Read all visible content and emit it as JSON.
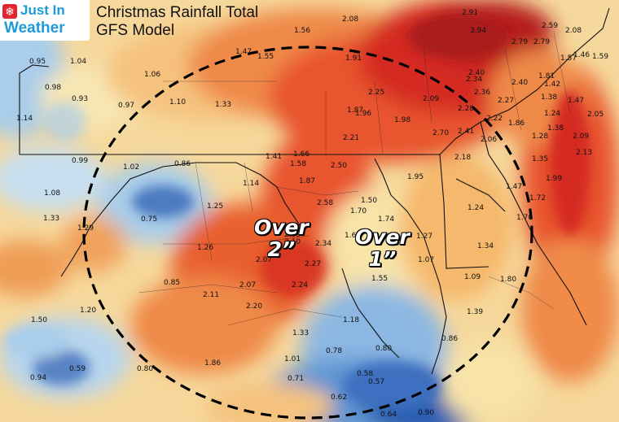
{
  "brand": {
    "line1": "Just In",
    "line2": "Weather",
    "icon": "snowflake-icon"
  },
  "title": {
    "line1": "Christmas Rainfall Total",
    "line2": "GFS Model"
  },
  "callouts": [
    {
      "big": "Over",
      "small": "2”"
    },
    {
      "big": "Over",
      "small": "1”"
    }
  ],
  "colors": {
    "light_blue": "#a9cdea",
    "mid_blue": "#5f95d2",
    "dark_blue": "#2c5fb3",
    "pale_yellow": "#f8e3a8",
    "light_orange": "#f5b86c",
    "orange": "#ef8a4a",
    "red_orange": "#e8542d",
    "red": "#d42a22",
    "dark_red": "#a81b1d",
    "circle": "#000000"
  },
  "rainfall_values": [
    {
      "v": "2.91"
    },
    {
      "v": "2.59"
    },
    {
      "v": "2.08"
    },
    {
      "v": "3.94"
    },
    {
      "v": "2.79"
    },
    {
      "v": "2.79"
    },
    {
      "v": "1.57"
    },
    {
      "v": "1.46"
    },
    {
      "v": "1.59"
    },
    {
      "v": "2.08"
    },
    {
      "v": "1.56"
    },
    {
      "v": "1.47"
    },
    {
      "v": "1.55"
    },
    {
      "v": "1.91"
    },
    {
      "v": "1.04"
    },
    {
      "v": "0.95"
    },
    {
      "v": "1.06"
    },
    {
      "v": "0.98"
    },
    {
      "v": "0.93"
    },
    {
      "v": "0.97"
    },
    {
      "v": "1.10"
    },
    {
      "v": "1.33"
    },
    {
      "v": "2.40"
    },
    {
      "v": "2.34"
    },
    {
      "v": "2.40"
    },
    {
      "v": "1.81"
    },
    {
      "v": "1.42"
    },
    {
      "v": "1.38"
    },
    {
      "v": "2.25"
    },
    {
      "v": "2.36"
    },
    {
      "v": "2.27"
    },
    {
      "v": "1.47"
    },
    {
      "v": "1.24"
    },
    {
      "v": "2.05"
    },
    {
      "v": "1.14"
    },
    {
      "v": "1.87"
    },
    {
      "v": "1.96"
    },
    {
      "v": "2.09"
    },
    {
      "v": "2.28"
    },
    {
      "v": "2.22"
    },
    {
      "v": "1.98"
    },
    {
      "v": "1.86"
    },
    {
      "v": "1.28"
    },
    {
      "v": "1.38"
    },
    {
      "v": "2.41"
    },
    {
      "v": "2.70"
    },
    {
      "v": "2.21"
    },
    {
      "v": "2.09"
    },
    {
      "v": "2.06"
    },
    {
      "v": "2.13"
    },
    {
      "v": "1.35"
    },
    {
      "v": "2.18"
    },
    {
      "v": "1.41"
    },
    {
      "v": "1.66"
    },
    {
      "v": "0.99"
    },
    {
      "v": "1.58"
    },
    {
      "v": "1.02"
    },
    {
      "v": "0.86"
    },
    {
      "v": "2.50"
    },
    {
      "v": "1.99"
    },
    {
      "v": "1.08"
    },
    {
      "v": "1.14"
    },
    {
      "v": "1.87"
    },
    {
      "v": "1.95"
    },
    {
      "v": "1.47"
    },
    {
      "v": "1.72"
    },
    {
      "v": "1.25"
    },
    {
      "v": "2.58"
    },
    {
      "v": "1.50"
    },
    {
      "v": "0.75"
    },
    {
      "v": "1.33"
    },
    {
      "v": "1.70"
    },
    {
      "v": "1.74"
    },
    {
      "v": "1.24"
    },
    {
      "v": "1.70"
    },
    {
      "v": "1.29"
    },
    {
      "v": "2.05"
    },
    {
      "v": "1.63"
    },
    {
      "v": "1.27"
    },
    {
      "v": "1.26"
    },
    {
      "v": "2.10"
    },
    {
      "v": "2.34"
    },
    {
      "v": "1.34"
    },
    {
      "v": "2.07"
    },
    {
      "v": "2.27"
    },
    {
      "v": "1.07"
    },
    {
      "v": "0.85"
    },
    {
      "v": "2.07"
    },
    {
      "v": "1.55"
    },
    {
      "v": "2.24"
    },
    {
      "v": "1.09"
    },
    {
      "v": "1.80"
    },
    {
      "v": "2.11"
    },
    {
      "v": "2.20"
    },
    {
      "v": "1.20"
    },
    {
      "v": "1.39"
    },
    {
      "v": "1.50"
    },
    {
      "v": "1.18"
    },
    {
      "v": "1.33"
    },
    {
      "v": "0.86"
    },
    {
      "v": "0.78"
    },
    {
      "v": "1.01"
    },
    {
      "v": "0.80"
    },
    {
      "v": "0.59"
    },
    {
      "v": "0.80"
    },
    {
      "v": "1.86"
    },
    {
      "v": "0.94"
    },
    {
      "v": "0.58"
    },
    {
      "v": "0.57"
    },
    {
      "v": "0.71"
    },
    {
      "v": "0.62"
    },
    {
      "v": "0.64"
    },
    {
      "v": "0.90"
    }
  ]
}
